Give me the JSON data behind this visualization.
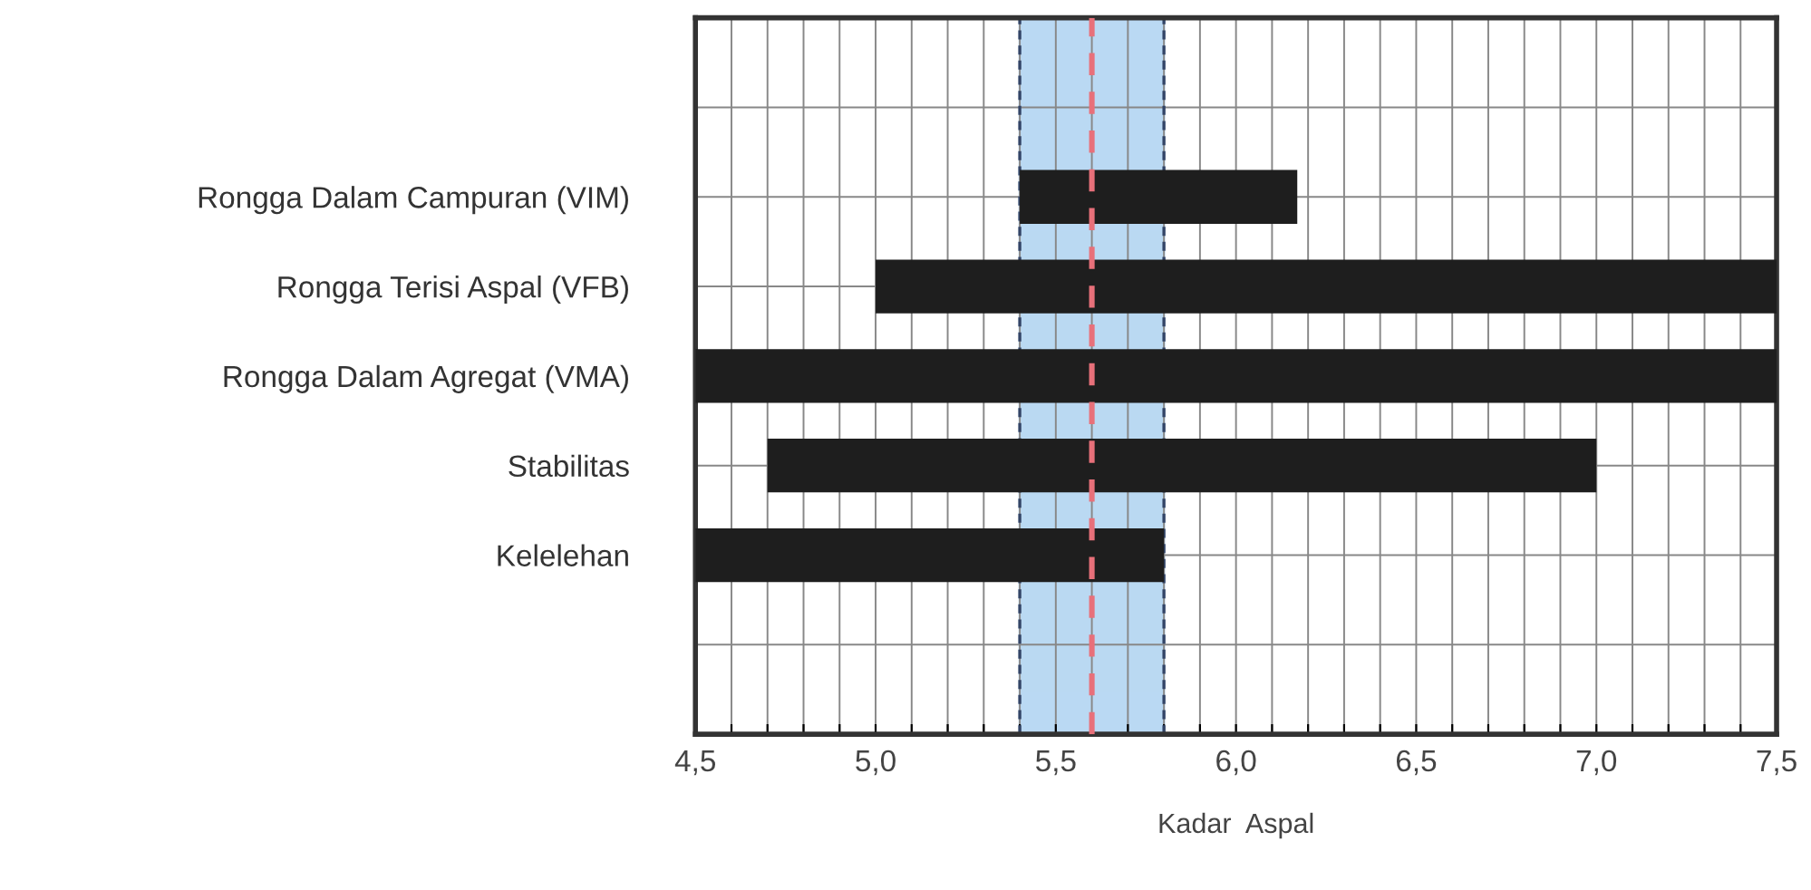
{
  "chart_data": {
    "type": "bar",
    "orientation": "horizontal",
    "xlabel": "Kadar  Aspal",
    "categories": [
      null,
      null,
      "Rongga Dalam Campuran (VIM)",
      "Rongga Terisi Aspal (VFB)",
      "Rongga Dalam Agregat (VMA)",
      "Stabilitas",
      "Kelelehan",
      null,
      null
    ],
    "base": [
      null,
      null,
      5.4,
      5.0,
      4.5,
      4.7,
      4.5,
      null,
      null
    ],
    "values": [
      null,
      null,
      0.77,
      2.5,
      3.0,
      2.3,
      1.3,
      null,
      null
    ],
    "color": "#1e1e1e",
    "xlim": [
      4.5,
      7.5
    ],
    "xticks": [
      {
        "value": 4.5,
        "label": "4,5"
      },
      {
        "value": 4.6,
        "label": null
      },
      {
        "value": 4.7,
        "label": null
      },
      {
        "value": 4.8,
        "label": null
      },
      {
        "value": 4.9,
        "label": null
      },
      {
        "value": 5.0,
        "label": "5,0"
      },
      {
        "value": 5.1,
        "label": null
      },
      {
        "value": 5.2,
        "label": null
      },
      {
        "value": 5.3,
        "label": null
      },
      {
        "value": 5.4,
        "label": null
      },
      {
        "value": 5.5,
        "label": "5,5"
      },
      {
        "value": 5.6,
        "label": null
      },
      {
        "value": 5.7,
        "label": null
      },
      {
        "value": 5.8,
        "label": null
      },
      {
        "value": 5.9,
        "label": null
      },
      {
        "value": 6.0,
        "label": "6,0"
      },
      {
        "value": 6.1,
        "label": null
      },
      {
        "value": 6.2,
        "label": null
      },
      {
        "value": 6.3,
        "label": null
      },
      {
        "value": 6.4,
        "label": null
      },
      {
        "value": 6.5,
        "label": "6,5"
      },
      {
        "value": 6.6,
        "label": null
      },
      {
        "value": 6.7,
        "label": null
      },
      {
        "value": 6.8,
        "label": null
      },
      {
        "value": 6.9,
        "label": null
      },
      {
        "value": 7.0,
        "label": "7,0"
      },
      {
        "value": 7.1,
        "label": null
      },
      {
        "value": 7.2,
        "label": null
      },
      {
        "value": 7.3,
        "label": null
      },
      {
        "value": 7.4,
        "label": null
      },
      {
        "value": 7.5,
        "label": "7,5"
      }
    ],
    "bands": [
      {
        "axis": "x",
        "from": 5.4,
        "to": 5.8,
        "color": "#a9d0f0"
      }
    ],
    "ref_lines": [
      {
        "axis": "x",
        "value": 5.6,
        "color": "#e8707a",
        "line_style": "dashed"
      }
    ],
    "grid": true
  }
}
